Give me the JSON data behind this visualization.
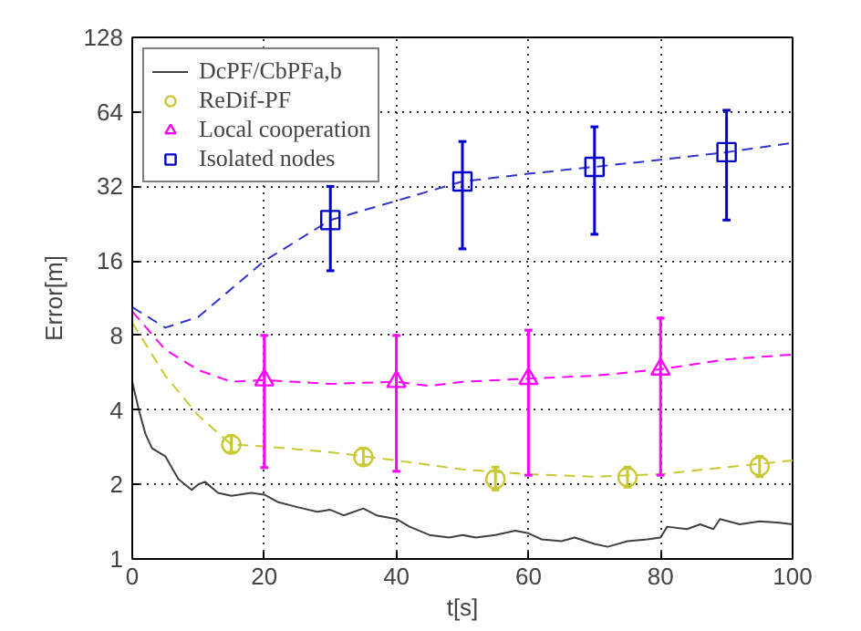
{
  "chart_data": {
    "type": "line",
    "xlabel": "t[s]",
    "ylabel": "Error[m]",
    "xlim": [
      0,
      100
    ],
    "xticks": [
      0,
      20,
      40,
      60,
      80,
      100
    ],
    "ylim": [
      1,
      128
    ],
    "yticks": [
      1,
      2,
      4,
      8,
      16,
      32,
      64,
      128
    ],
    "log": "y",
    "grid": true,
    "legend": "top left",
    "series": [
      {
        "name": "DcPF/CbPFa,b",
        "line_style": "solid",
        "color": "#404040",
        "x": [
          0,
          1,
          2,
          3,
          5,
          7,
          9,
          10,
          11,
          13,
          15,
          18,
          20,
          22,
          25,
          28,
          30,
          32,
          35,
          37,
          40,
          42,
          45,
          48,
          50,
          52,
          55,
          58,
          60,
          62,
          65,
          67,
          70,
          72,
          75,
          78,
          80,
          81,
          84,
          86,
          88,
          89,
          92,
          95,
          98,
          100
        ],
        "values": [
          5.2,
          4,
          3.2,
          2.8,
          2.6,
          2.1,
          1.9,
          2.0,
          2.05,
          1.85,
          1.8,
          1.85,
          1.82,
          1.7,
          1.62,
          1.55,
          1.58,
          1.5,
          1.6,
          1.5,
          1.45,
          1.35,
          1.25,
          1.22,
          1.25,
          1.22,
          1.25,
          1.3,
          1.27,
          1.2,
          1.18,
          1.22,
          1.15,
          1.12,
          1.18,
          1.2,
          1.22,
          1.35,
          1.32,
          1.38,
          1.32,
          1.45,
          1.38,
          1.42,
          1.4,
          1.38
        ]
      },
      {
        "line_style": "dashed",
        "color": "#c8c832",
        "x": [
          0,
          5,
          10,
          15,
          20,
          30,
          40,
          50,
          60,
          70,
          80,
          90,
          100
        ],
        "values": [
          9,
          5.5,
          3.8,
          2.9,
          2.85,
          2.7,
          2.5,
          2.3,
          2.2,
          2.15,
          2.2,
          2.35,
          2.5
        ]
      },
      {
        "line_style": "dashed",
        "color": "#ff00ff",
        "x": [
          0,
          5,
          10,
          15,
          20,
          30,
          40,
          45,
          50,
          60,
          70,
          80,
          90,
          100
        ],
        "values": [
          10,
          7,
          5.8,
          5.2,
          5.28,
          5.1,
          5.2,
          5.0,
          5.2,
          5.35,
          5.5,
          5.84,
          6.4,
          6.7
        ]
      },
      {
        "line_style": "dashed",
        "color": "#3333cc",
        "x": [
          0,
          5,
          10,
          20,
          30,
          40,
          50,
          60,
          70,
          80,
          90,
          100
        ],
        "values": [
          10.4,
          8.6,
          9.5,
          16,
          23.4,
          28,
          33.5,
          36,
          38.4,
          41,
          44,
          48
        ]
      },
      {
        "name": "ReDif-PF",
        "type": "scatter",
        "marker": "circle",
        "color": "#c8c832",
        "x": [
          15,
          35,
          55,
          75,
          95
        ],
        "values": [
          2.9,
          2.58,
          2.1,
          2.14,
          2.37
        ],
        "errors": [
          [
            2.7,
            3.15
          ],
          [
            2.4,
            2.8
          ],
          [
            1.9,
            2.35
          ],
          [
            1.95,
            2.35
          ],
          [
            2.15,
            2.6
          ]
        ]
      },
      {
        "name": "Local cooperation",
        "type": "scatter",
        "marker": "triangle",
        "color": "#ff00ff",
        "x": [
          20,
          40,
          60,
          80
        ],
        "values": [
          5.28,
          5.2,
          5.35,
          5.84
        ],
        "errors": [
          [
            2.34,
            8
          ],
          [
            2.26,
            8
          ],
          [
            2.18,
            8.4
          ],
          [
            2.18,
            9.4
          ]
        ]
      },
      {
        "name": "Isolated nodes",
        "type": "scatter",
        "marker": "square",
        "color": "#0000cc",
        "x": [
          30,
          50,
          70,
          90
        ],
        "values": [
          23.4,
          33.5,
          38.4,
          44
        ],
        "errors": [
          [
            14.6,
            32
          ],
          [
            17.9,
            48.6
          ],
          [
            20.5,
            55.7
          ],
          [
            23.4,
            65
          ]
        ]
      }
    ]
  }
}
